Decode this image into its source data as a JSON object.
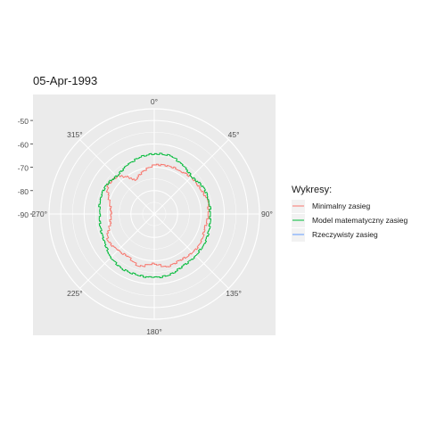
{
  "chart_data": {
    "type": "line",
    "coordinate_system": "polar",
    "title": "05-Apr-1993",
    "theta_ticks": [
      "0°",
      "45°",
      "90°",
      "135°",
      "180°",
      "225°",
      "270°",
      "315°"
    ],
    "theta_tick_values": [
      0,
      45,
      90,
      135,
      180,
      225,
      270,
      315
    ],
    "r_axis": {
      "ticks": [
        "-50",
        "-60",
        "-70",
        "-80",
        "-90"
      ],
      "tick_values": [
        -50,
        -60,
        -70,
        -80,
        -90
      ],
      "range": [
        -90,
        -45
      ],
      "direction": "-90 at center"
    },
    "legend": {
      "title": "Wykresy:",
      "position": "right",
      "entries": [
        "Minimalny zasieg",
        "Model matematyczny zasieg",
        "Rzeczywisty zasieg"
      ],
      "colors": [
        "#F8766D",
        "#00BA38",
        "#619CFF"
      ]
    },
    "series": [
      {
        "name": "Minimalny zasieg",
        "color": "#F8766D",
        "points": [
          [
            0,
            -69.0
          ],
          [
            15,
            -68.5
          ],
          [
            30,
            -68.5
          ],
          [
            45,
            -67.6
          ],
          [
            60,
            -67.7
          ],
          [
            75,
            -66.4
          ],
          [
            90,
            -67.0
          ],
          [
            105,
            -67.6
          ],
          [
            120,
            -66.6
          ],
          [
            135,
            -66.7
          ],
          [
            150,
            -67.4
          ],
          [
            165,
            -66.8
          ],
          [
            180,
            -69.0
          ],
          [
            195,
            -66.7
          ],
          [
            210,
            -68.7
          ],
          [
            225,
            -68.0
          ],
          [
            240,
            -67.0
          ],
          [
            255,
            -70.7
          ],
          [
            270,
            -71.8
          ],
          [
            285,
            -70.2
          ],
          [
            300,
            -66.6
          ],
          [
            315,
            -67.4
          ],
          [
            330,
            -73.5
          ],
          [
            345,
            -71.0
          ],
          [
            360,
            -69.0
          ]
        ]
      },
      {
        "name": "Model matematyczny zasieg",
        "color": "#00BA38",
        "points": [
          [
            0,
            -64.2
          ],
          [
            15,
            -64.2
          ],
          [
            30,
            -66.0
          ],
          [
            45,
            -67.6
          ],
          [
            60,
            -66.0
          ],
          [
            75,
            -66.0
          ],
          [
            90,
            -66.0
          ],
          [
            105,
            -65.6
          ],
          [
            120,
            -65.1
          ],
          [
            135,
            -64.9
          ],
          [
            150,
            -64.7
          ],
          [
            165,
            -63.0
          ],
          [
            180,
            -62.9
          ],
          [
            195,
            -62.9
          ],
          [
            210,
            -62.9
          ],
          [
            225,
            -63.9
          ],
          [
            240,
            -65.8
          ],
          [
            255,
            -66.3
          ],
          [
            270,
            -66.7
          ],
          [
            285,
            -66.0
          ],
          [
            300,
            -66.0
          ],
          [
            315,
            -67.4
          ],
          [
            330,
            -66.2
          ],
          [
            345,
            -65.0
          ],
          [
            360,
            -64.2
          ]
        ]
      },
      {
        "name": "Rzeczywisty zasieg",
        "color": "#619CFF",
        "points": []
      }
    ]
  }
}
